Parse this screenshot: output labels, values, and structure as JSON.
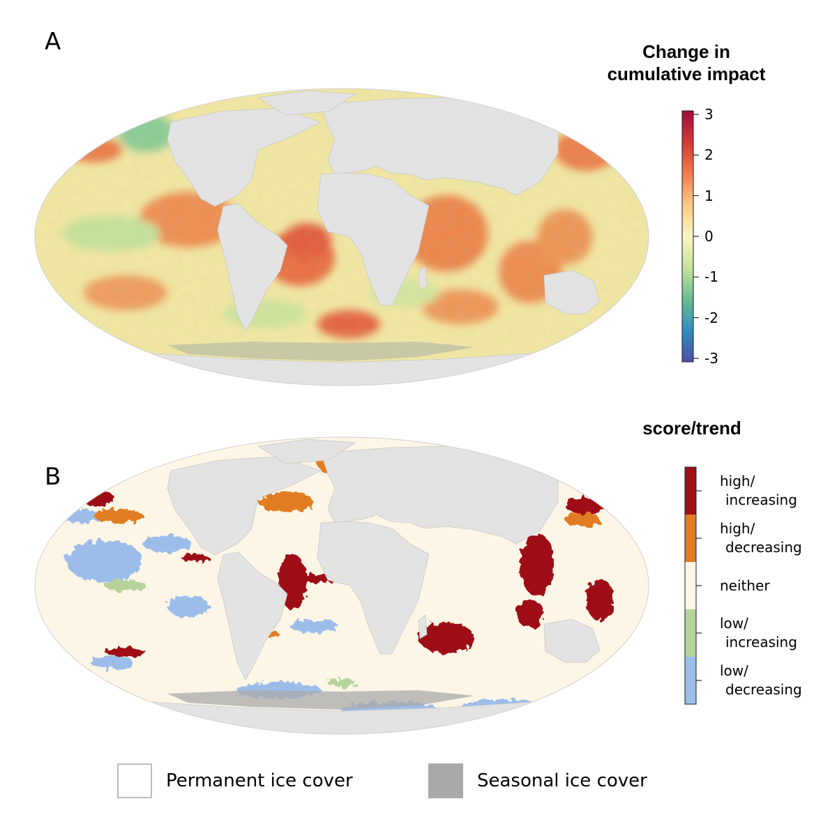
{
  "panel_a": {
    "label": "A",
    "legend_title_line1": "Change in",
    "legend_title_line2": "cumulative impact",
    "legend_ticks": [
      "3",
      "2",
      "1",
      "0",
      "-1",
      "-2",
      "-3"
    ],
    "scale_min": -3,
    "scale_max": 3,
    "scale_colors": [
      "#4a4fa3",
      "#2f8fbf",
      "#69bd8f",
      "#c7e39a",
      "#fbf5c0",
      "#fdc985",
      "#f47c49",
      "#d43a33",
      "#a00a3e"
    ]
  },
  "panel_b": {
    "label": "B",
    "legend_title": "score/trend",
    "categories": [
      {
        "line1": "high/",
        "line2": "increasing",
        "color": "#9e1017"
      },
      {
        "line1": "high/",
        "line2": "decreasing",
        "color": "#e27b22"
      },
      {
        "line1": "neither",
        "line2": "",
        "color": "#fdf6e6"
      },
      {
        "line1": "low/",
        "line2": "increasing",
        "color": "#b5d39b"
      },
      {
        "line1": "low/",
        "line2": "decreasing",
        "color": "#9cbde9"
      }
    ]
  },
  "ice_legend": {
    "permanent": {
      "label": "Permanent ice cover",
      "color": "#ffffff"
    },
    "seasonal": {
      "label": "Seasonal ice cover",
      "color": "#a9a9a9"
    }
  },
  "colors": {
    "land": "#e3e3e3",
    "country_border": "#c9c9c9",
    "ocean_a": "#f8eaa5",
    "ocean_b": "#fdf6e6"
  }
}
